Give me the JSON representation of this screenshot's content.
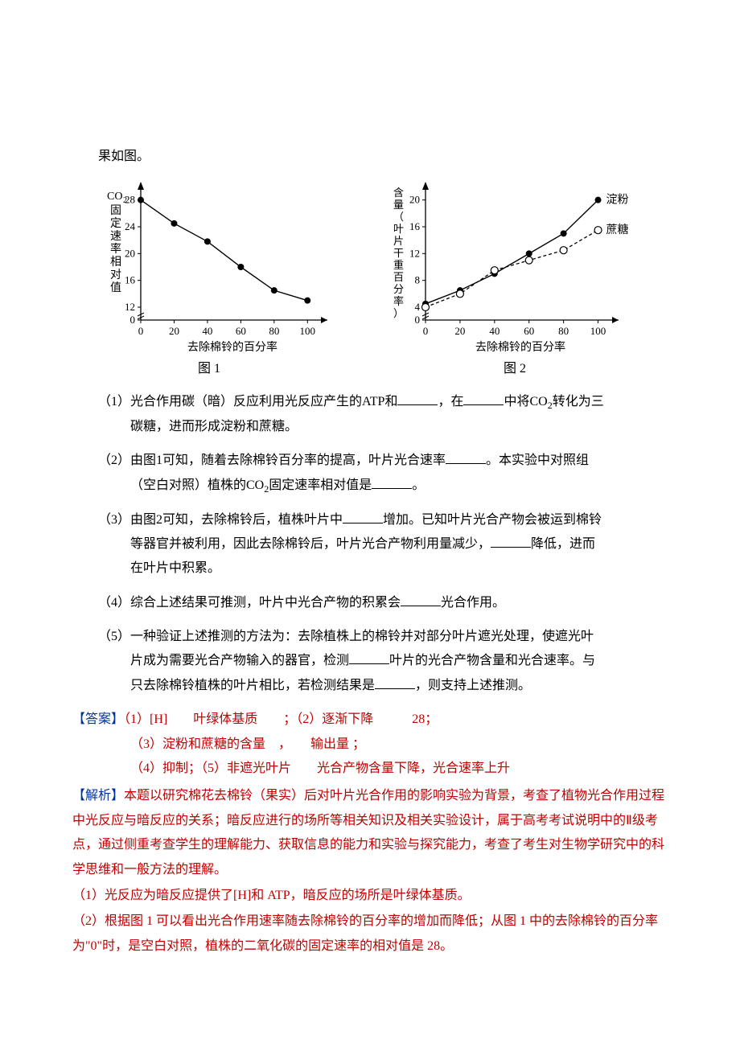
{
  "top_fragment": "果如图。",
  "chart1": {
    "type": "line",
    "y_label": "CO₂固定速率相对值",
    "x_label": "去除棉铃的百分率",
    "caption": "图 1",
    "x_ticks": [
      0,
      20,
      40,
      60,
      80,
      100
    ],
    "y_ticks": [
      0,
      12,
      16,
      20,
      24,
      28
    ],
    "x_range": [
      0,
      110
    ],
    "y_range": [
      0,
      30
    ],
    "y_break_below": 12,
    "series": [
      {
        "name": "CO2固定速率",
        "color": "#000000",
        "marker": "circle",
        "marker_size": 4,
        "line_width": 1.4,
        "points": [
          {
            "x": 0,
            "y": 28
          },
          {
            "x": 20,
            "y": 24.5
          },
          {
            "x": 40,
            "y": 21.8
          },
          {
            "x": 60,
            "y": 18
          },
          {
            "x": 80,
            "y": 14.5
          },
          {
            "x": 100,
            "y": 13
          }
        ]
      }
    ],
    "axis_color": "#000000",
    "background": "#ffffff",
    "tick_font_size": 13
  },
  "chart2": {
    "type": "line",
    "y_label": "含量（叶片干重百分率）",
    "x_label": "去除棉铃的百分率",
    "caption": "图 2",
    "x_ticks": [
      0,
      20,
      40,
      60,
      80,
      100
    ],
    "y_ticks": [
      0,
      4,
      8,
      12,
      16,
      20
    ],
    "x_range": [
      0,
      110
    ],
    "y_range": [
      0,
      22
    ],
    "y_break_below": 4,
    "series": [
      {
        "name": "淀粉",
        "label": "淀粉",
        "color": "#000000",
        "marker": "filled-circle",
        "marker_size": 4,
        "dash": "none",
        "line_width": 1.4,
        "points": [
          {
            "x": 0,
            "y": 4.5
          },
          {
            "x": 20,
            "y": 6.5
          },
          {
            "x": 40,
            "y": 9
          },
          {
            "x": 60,
            "y": 12
          },
          {
            "x": 80,
            "y": 15
          },
          {
            "x": 100,
            "y": 20
          }
        ]
      },
      {
        "name": "蔗糖",
        "label": "蔗糖",
        "color": "#000000",
        "marker": "open-circle",
        "marker_size": 4.5,
        "dash": "4,3",
        "line_width": 1.3,
        "points": [
          {
            "x": 0,
            "y": 4
          },
          {
            "x": 20,
            "y": 6
          },
          {
            "x": 40,
            "y": 9.5
          },
          {
            "x": 60,
            "y": 11
          },
          {
            "x": 80,
            "y": 12.5
          },
          {
            "x": 100,
            "y": 15.5
          }
        ]
      }
    ],
    "axis_color": "#000000",
    "background": "#ffffff",
    "tick_font_size": 13
  },
  "questions": {
    "q1_a": "（1）光合作用碳（暗）反应利用光反应产生的ATP和",
    "q1_b": "，在",
    "q1_c": "中将CO",
    "q1_d": "转化为三",
    "q1_cont": "碳糖，进而形成淀粉和蔗糖。",
    "q2_a": "（2）由图1可知，随着去除棉铃百分率的提高，叶片光合速率",
    "q2_b": "。本实验中对照组",
    "q2_cont_a": "（空白对照）植株的CO",
    "q2_cont_b": "固定速率相对值是",
    "q2_cont_c": "。",
    "q3_a": "（3）由图2可知，去除棉铃后，植株叶片中",
    "q3_b": "增加。已知叶片光合产物会被运到棉铃",
    "q3_cont_a": "等器官并被利用，因此去除棉铃后，叶片光合产物利用量减少，",
    "q3_cont_b": "降低，进而",
    "q3_cont2": "在叶片中积累。",
    "q4_a": "（4）综合上述结果可推测，叶片中光合产物的积累会",
    "q4_b": "光合作用。",
    "q5_a": "（5）一种验证上述推测的方法为：去除植株上的棉铃并对部分叶片遮光处理，使遮光叶",
    "q5_cont1_a": "片成为需要光合产物输入的器官，检测",
    "q5_cont1_b": "叶片的光合产物含量和光合速率。与",
    "q5_cont2_a": "只去除棉铃植株的叶片相比，若检测结果是",
    "q5_cont2_b": "，则支持上述推测。"
  },
  "answers": {
    "label": "【答案】",
    "line1": "（1）[H]　　叶绿体基质　　；（2）逐渐下降　　　28；",
    "line2": "（3）淀粉和蔗糖的含量　，　　输出量 ；",
    "line3": "（4）抑制；（5）非遮光叶片　　光合产物含量下降，光合速率上升"
  },
  "analysis": {
    "label": "【解析】",
    "p1": "本题以研究棉花去棉铃（果实）后对叶片光合作用的影响实验为背景，考查了植物光合作用过程中光反应与暗反应的关系；暗反应进行的场所等相关知识及相关实验设计，属于高考考试说明中的Ⅱ级考点，通过侧重考查学生的理解能力、获取信息的能力和实验与探究能力，考查了考生对生物学研究中的科学思维和一般方法的理解。",
    "s1": "（1）光反应为暗反应提供了[H]和 ATP，暗反应的场所是叶绿体基质。",
    "s2": "（2）根据图 1 可以看出光合作用速率随去除棉铃的百分率的增加而降低；从图 1 中的去除棉铃的百分率为\"0\"时，是空白对照，植株的二氧化碳的固定速率的相对值是 28。"
  }
}
